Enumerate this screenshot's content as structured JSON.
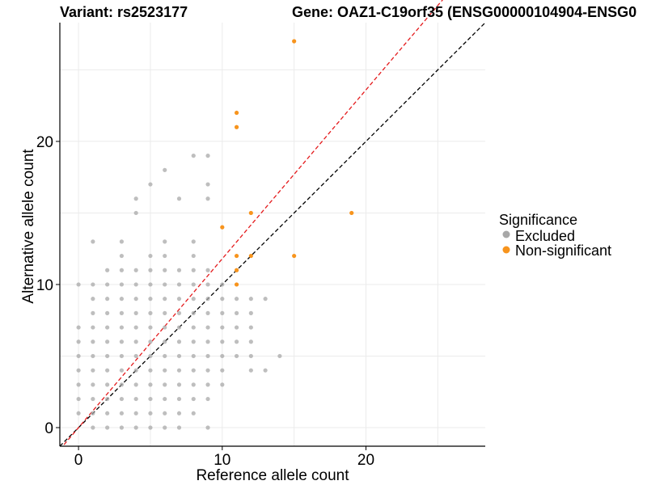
{
  "chart_data": {
    "type": "scatter",
    "title_left": "Variant: rs2523177",
    "title_right": "Gene: OAZ1-C19orf35 (ENSG00000104904-ENSG0",
    "xlabel": "Reference allele count",
    "ylabel": "Alternative allele count",
    "xlim": [
      -1.3,
      28.3
    ],
    "ylim": [
      -1.3,
      28.3
    ],
    "xticks": [
      0,
      10,
      20
    ],
    "yticks": [
      0,
      10,
      20
    ],
    "grid": true,
    "legend": {
      "title": "Significance",
      "position": "right",
      "entries": [
        {
          "label": "Excluded",
          "color": "#a8a8a8"
        },
        {
          "label": "Non-significant",
          "color": "#f7941d"
        }
      ]
    },
    "reference_lines": [
      {
        "name": "identity",
        "slope": 1.0,
        "intercept": 0,
        "color": "#000000",
        "dash": "dashed"
      },
      {
        "name": "fit",
        "slope": 1.18,
        "intercept": 0,
        "color": "#e41a1c",
        "dash": "dashed"
      }
    ],
    "series": [
      {
        "name": "Excluded",
        "color": "#a8a8a8",
        "points": [
          [
            0,
            1
          ],
          [
            0,
            2
          ],
          [
            0,
            3
          ],
          [
            0,
            4
          ],
          [
            0,
            5
          ],
          [
            0,
            6
          ],
          [
            0,
            7
          ],
          [
            0,
            10
          ],
          [
            1,
            0
          ],
          [
            1,
            1
          ],
          [
            1,
            2
          ],
          [
            1,
            3
          ],
          [
            1,
            4
          ],
          [
            1,
            5
          ],
          [
            1,
            6
          ],
          [
            1,
            7
          ],
          [
            1,
            8
          ],
          [
            1,
            9
          ],
          [
            1,
            10
          ],
          [
            1,
            13
          ],
          [
            2,
            0
          ],
          [
            2,
            1
          ],
          [
            2,
            2
          ],
          [
            2,
            3
          ],
          [
            2,
            4
          ],
          [
            2,
            5
          ],
          [
            2,
            6
          ],
          [
            2,
            7
          ],
          [
            2,
            8
          ],
          [
            2,
            9
          ],
          [
            2,
            10
          ],
          [
            2,
            11
          ],
          [
            3,
            0
          ],
          [
            3,
            1
          ],
          [
            3,
            2
          ],
          [
            3,
            3
          ],
          [
            3,
            4
          ],
          [
            3,
            5
          ],
          [
            3,
            6
          ],
          [
            3,
            7
          ],
          [
            3,
            8
          ],
          [
            3,
            9
          ],
          [
            3,
            10
          ],
          [
            3,
            11
          ],
          [
            3,
            12
          ],
          [
            3,
            13
          ],
          [
            4,
            0
          ],
          [
            4,
            1
          ],
          [
            4,
            2
          ],
          [
            4,
            3
          ],
          [
            4,
            4
          ],
          [
            4,
            5
          ],
          [
            4,
            6
          ],
          [
            4,
            7
          ],
          [
            4,
            8
          ],
          [
            4,
            9
          ],
          [
            4,
            10
          ],
          [
            4,
            11
          ],
          [
            4,
            15
          ],
          [
            4,
            16
          ],
          [
            5,
            0
          ],
          [
            5,
            1
          ],
          [
            5,
            2
          ],
          [
            5,
            3
          ],
          [
            5,
            4
          ],
          [
            5,
            5
          ],
          [
            5,
            6
          ],
          [
            5,
            7
          ],
          [
            5,
            8
          ],
          [
            5,
            9
          ],
          [
            5,
            10
          ],
          [
            5,
            11
          ],
          [
            5,
            12
          ],
          [
            5,
            17
          ],
          [
            6,
            0
          ],
          [
            6,
            1
          ],
          [
            6,
            2
          ],
          [
            6,
            3
          ],
          [
            6,
            4
          ],
          [
            6,
            5
          ],
          [
            6,
            6
          ],
          [
            6,
            7
          ],
          [
            6,
            8
          ],
          [
            6,
            9
          ],
          [
            6,
            10
          ],
          [
            6,
            11
          ],
          [
            6,
            12
          ],
          [
            6,
            13
          ],
          [
            6,
            18
          ],
          [
            7,
            0
          ],
          [
            7,
            1
          ],
          [
            7,
            2
          ],
          [
            7,
            3
          ],
          [
            7,
            4
          ],
          [
            7,
            5
          ],
          [
            7,
            6
          ],
          [
            7,
            7
          ],
          [
            7,
            8
          ],
          [
            7,
            9
          ],
          [
            7,
            10
          ],
          [
            7,
            11
          ],
          [
            7,
            16
          ],
          [
            8,
            1
          ],
          [
            8,
            2
          ],
          [
            8,
            3
          ],
          [
            8,
            4
          ],
          [
            8,
            5
          ],
          [
            8,
            6
          ],
          [
            8,
            7
          ],
          [
            8,
            8
          ],
          [
            8,
            9
          ],
          [
            8,
            10
          ],
          [
            8,
            11
          ],
          [
            8,
            12
          ],
          [
            8,
            13
          ],
          [
            8,
            19
          ],
          [
            9,
            0
          ],
          [
            9,
            2
          ],
          [
            9,
            3
          ],
          [
            9,
            4
          ],
          [
            9,
            5
          ],
          [
            9,
            6
          ],
          [
            9,
            7
          ],
          [
            9,
            8
          ],
          [
            9,
            9
          ],
          [
            9,
            10
          ],
          [
            9,
            11
          ],
          [
            9,
            16
          ],
          [
            9,
            17
          ],
          [
            9,
            19
          ],
          [
            10,
            3
          ],
          [
            10,
            4
          ],
          [
            10,
            5
          ],
          [
            10,
            6
          ],
          [
            10,
            7
          ],
          [
            10,
            8
          ],
          [
            10,
            9
          ],
          [
            10,
            10
          ],
          [
            11,
            5
          ],
          [
            11,
            6
          ],
          [
            11,
            7
          ],
          [
            11,
            8
          ],
          [
            11,
            9
          ],
          [
            12,
            4
          ],
          [
            12,
            5
          ],
          [
            12,
            6
          ],
          [
            12,
            7
          ],
          [
            12,
            8
          ],
          [
            12,
            9
          ],
          [
            13,
            4
          ],
          [
            13,
            9
          ],
          [
            14,
            5
          ]
        ]
      },
      {
        "name": "Non-significant",
        "color": "#f7941d",
        "points": [
          [
            10,
            14
          ],
          [
            11,
            10
          ],
          [
            11,
            11
          ],
          [
            11,
            12
          ],
          [
            11,
            21
          ],
          [
            11,
            22
          ],
          [
            12,
            12
          ],
          [
            12,
            15
          ],
          [
            15,
            12
          ],
          [
            15,
            27
          ],
          [
            19,
            15
          ]
        ]
      }
    ]
  }
}
